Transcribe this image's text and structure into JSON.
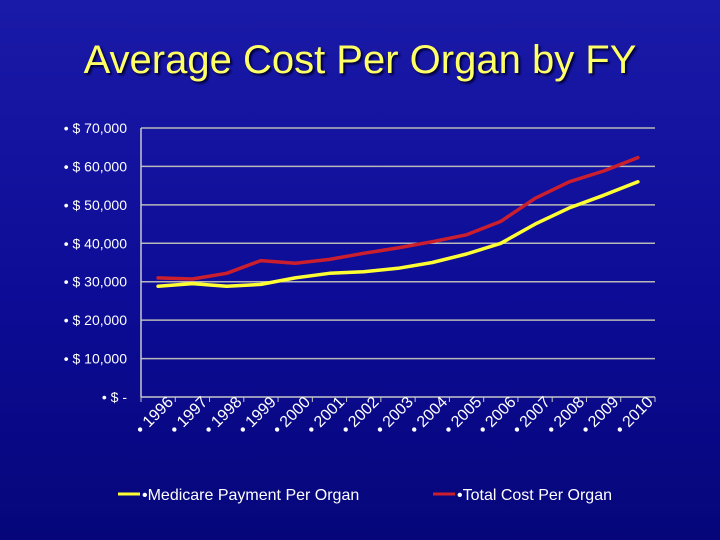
{
  "slide": {
    "title": "Average Cost Per Organ by FY"
  },
  "chart_data": {
    "type": "line",
    "title": "Average Cost Per Organ by FY",
    "xlabel": "",
    "ylabel": "",
    "ylim": [
      0,
      70000
    ],
    "grid": true,
    "legend_position": "bottom",
    "y_ticks": [
      {
        "value": 70000,
        "label": "• $ 70,000"
      },
      {
        "value": 60000,
        "label": "• $ 60,000"
      },
      {
        "value": 50000,
        "label": "• $ 50,000"
      },
      {
        "value": 40000,
        "label": "• $ 40,000"
      },
      {
        "value": 30000,
        "label": "• $ 30,000"
      },
      {
        "value": 20000,
        "label": "• $ 20,000"
      },
      {
        "value": 10000,
        "label": "• $ 10,000"
      },
      {
        "value": 0,
        "label": "• $ -"
      }
    ],
    "categories": [
      "• 1996",
      "• 1997",
      "• 1998",
      "• 1999",
      "• 2000",
      "• 2001",
      "• 2002",
      "• 2003",
      "• 2004",
      "• 2005",
      "• 2006",
      "• 2007",
      "• 2008",
      "• 2009",
      "• 2010"
    ],
    "series": [
      {
        "name": "•Medicare Payment Per Organ",
        "color": "#ffff33",
        "values": [
          28800,
          29500,
          28800,
          29300,
          31000,
          32200,
          32600,
          33500,
          35000,
          37200,
          40000,
          45000,
          49200,
          52500,
          56000
        ]
      },
      {
        "name": "•Total Cost Per Organ",
        "color": "#cc1f2e",
        "values": [
          31000,
          30700,
          32200,
          35500,
          34800,
          35800,
          37400,
          38800,
          40400,
          42200,
          45700,
          51700,
          56000,
          58800,
          62300
        ]
      }
    ]
  }
}
